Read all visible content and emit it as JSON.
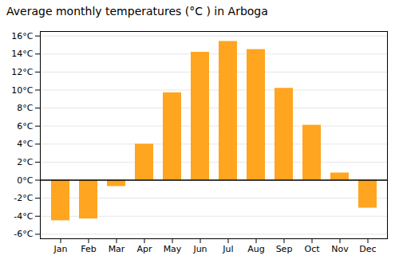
{
  "chart_data": {
    "type": "bar",
    "title": "Average monthly temperatures (°C ) in Arboga",
    "categories": [
      "Jan",
      "Feb",
      "Mar",
      "Apr",
      "May",
      "Jun",
      "Jul",
      "Aug",
      "Sep",
      "Oct",
      "Nov",
      "Dec"
    ],
    "values": [
      -4.5,
      -4.3,
      -0.7,
      4.0,
      9.7,
      14.2,
      15.4,
      14.5,
      10.2,
      6.1,
      0.8,
      -3.1
    ],
    "color": "#FFA520",
    "ylim": [
      -6.5,
      16.5
    ],
    "yticks": [
      {
        "value": -6,
        "label": "-6°C"
      },
      {
        "value": -4,
        "label": "-4°C"
      },
      {
        "value": -2,
        "label": "-2°C"
      },
      {
        "value": 0,
        "label": "0°C"
      },
      {
        "value": 2,
        "label": "2°C"
      },
      {
        "value": 4,
        "label": "4°C"
      },
      {
        "value": 6,
        "label": "6°C"
      },
      {
        "value": 8,
        "label": "8°C"
      },
      {
        "value": 10,
        "label": "10°C"
      },
      {
        "value": 12,
        "label": "12°C"
      },
      {
        "value": 14,
        "label": "14°C"
      },
      {
        "value": 16,
        "label": "16°C"
      }
    ],
    "grid": true
  }
}
